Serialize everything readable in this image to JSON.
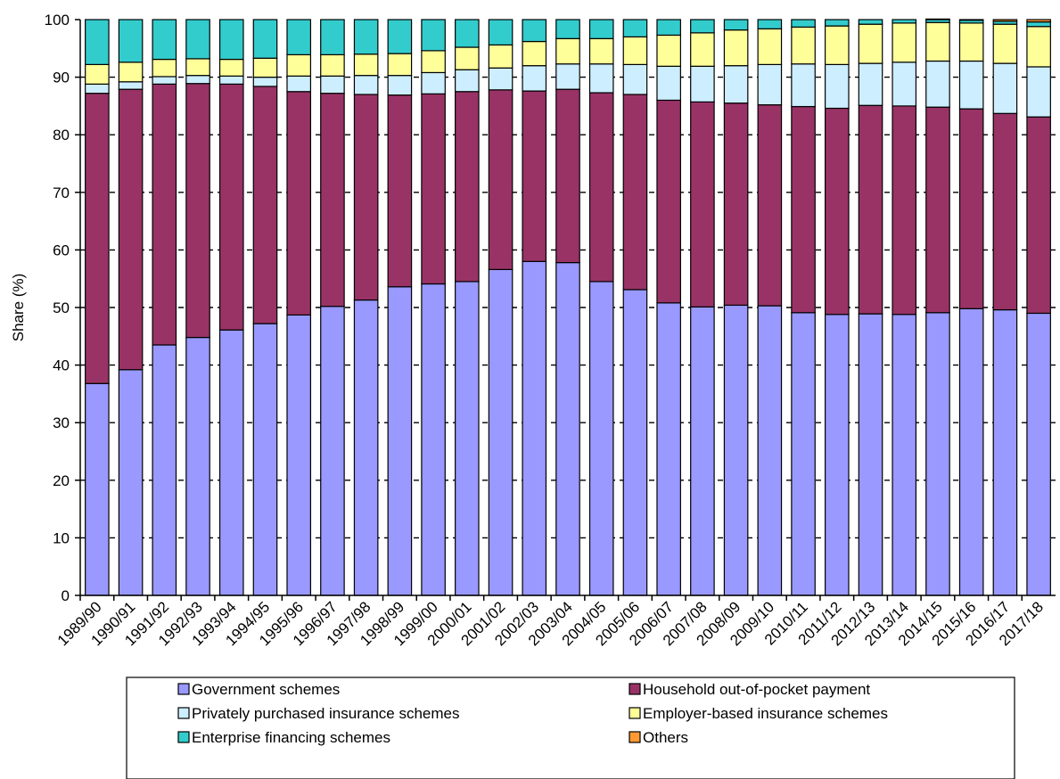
{
  "chart_data": {
    "type": "bar",
    "stacked": true,
    "ylabel": "Share (%)",
    "xlabel": "",
    "ylim": [
      0,
      100
    ],
    "yticks": [
      0,
      10,
      20,
      30,
      40,
      50,
      60,
      70,
      80,
      90,
      100
    ],
    "grid": "horizontal dashed",
    "legend_position": "bottom",
    "categories": [
      "1989/90",
      "1990/91",
      "1991/92",
      "1992/93",
      "1993/94",
      "1994/95",
      "1995/96",
      "1996/97",
      "1997/98",
      "1998/99",
      "1999/00",
      "2000/01",
      "2001/02",
      "2002/03",
      "2003/04",
      "2004/05",
      "2005/06",
      "2006/07",
      "2007/08",
      "2008/09",
      "2009/10",
      "2010/11",
      "2011/12",
      "2012/13",
      "2013/14",
      "2014/15",
      "2015/16",
      "2016/17",
      "2017/18"
    ],
    "series": [
      {
        "name": "Government schemes",
        "color": "#9999ff",
        "values": [
          36.8,
          39.2,
          43.5,
          44.8,
          46.1,
          47.2,
          48.7,
          50.2,
          51.3,
          53.6,
          54.1,
          54.5,
          56.6,
          58.0,
          57.8,
          54.5,
          53.1,
          50.8,
          50.1,
          50.4,
          50.3,
          49.1,
          48.8,
          48.9,
          48.8,
          49.1,
          49.8,
          49.6,
          49.0
        ]
      },
      {
        "name": "Household out-of-pocket payment",
        "color": "#993366",
        "values": [
          50.4,
          48.7,
          45.3,
          44.1,
          42.7,
          41.2,
          38.8,
          37.0,
          35.7,
          33.3,
          33.0,
          33.0,
          31.2,
          29.6,
          30.1,
          32.8,
          33.9,
          35.2,
          35.6,
          35.1,
          34.9,
          35.8,
          35.8,
          36.2,
          36.2,
          35.7,
          34.7,
          34.1,
          34.1
        ]
      },
      {
        "name": "Privately purchased insurance schemes",
        "color": "#cceeff",
        "values": [
          1.6,
          1.3,
          1.3,
          1.4,
          1.4,
          1.6,
          2.7,
          3.0,
          3.3,
          3.4,
          3.7,
          3.8,
          3.8,
          4.4,
          4.4,
          5.0,
          5.2,
          5.9,
          6.2,
          6.5,
          7.0,
          7.4,
          7.6,
          7.3,
          7.6,
          8.0,
          8.3,
          8.7,
          8.7
        ]
      },
      {
        "name": "Employer-based insurance schemes",
        "color": "#ffff99",
        "values": [
          3.4,
          3.4,
          3.0,
          2.9,
          2.9,
          3.3,
          3.7,
          3.7,
          3.7,
          3.8,
          3.8,
          3.9,
          4.0,
          4.2,
          4.4,
          4.4,
          4.8,
          5.4,
          5.8,
          6.2,
          6.2,
          6.4,
          6.7,
          6.8,
          6.8,
          6.7,
          6.6,
          6.8,
          7.0
        ]
      },
      {
        "name": "Enterprise financing schemes",
        "color": "#33cccc",
        "values": [
          7.8,
          7.4,
          6.9,
          6.8,
          6.9,
          6.7,
          6.1,
          6.1,
          6.0,
          5.9,
          5.4,
          4.8,
          4.4,
          3.8,
          3.3,
          3.3,
          3.0,
          2.7,
          2.3,
          1.8,
          1.6,
          1.3,
          1.1,
          0.8,
          0.6,
          0.5,
          0.5,
          0.5,
          0.8
        ]
      },
      {
        "name": "Others",
        "color": "#ff9933",
        "values": [
          0,
          0,
          0,
          0,
          0,
          0,
          0,
          0,
          0,
          0,
          0,
          0,
          0,
          0,
          0,
          0,
          0,
          0,
          0,
          0,
          0,
          0,
          0,
          0,
          0,
          0.1,
          0.1,
          0.3,
          0.4
        ]
      }
    ]
  }
}
